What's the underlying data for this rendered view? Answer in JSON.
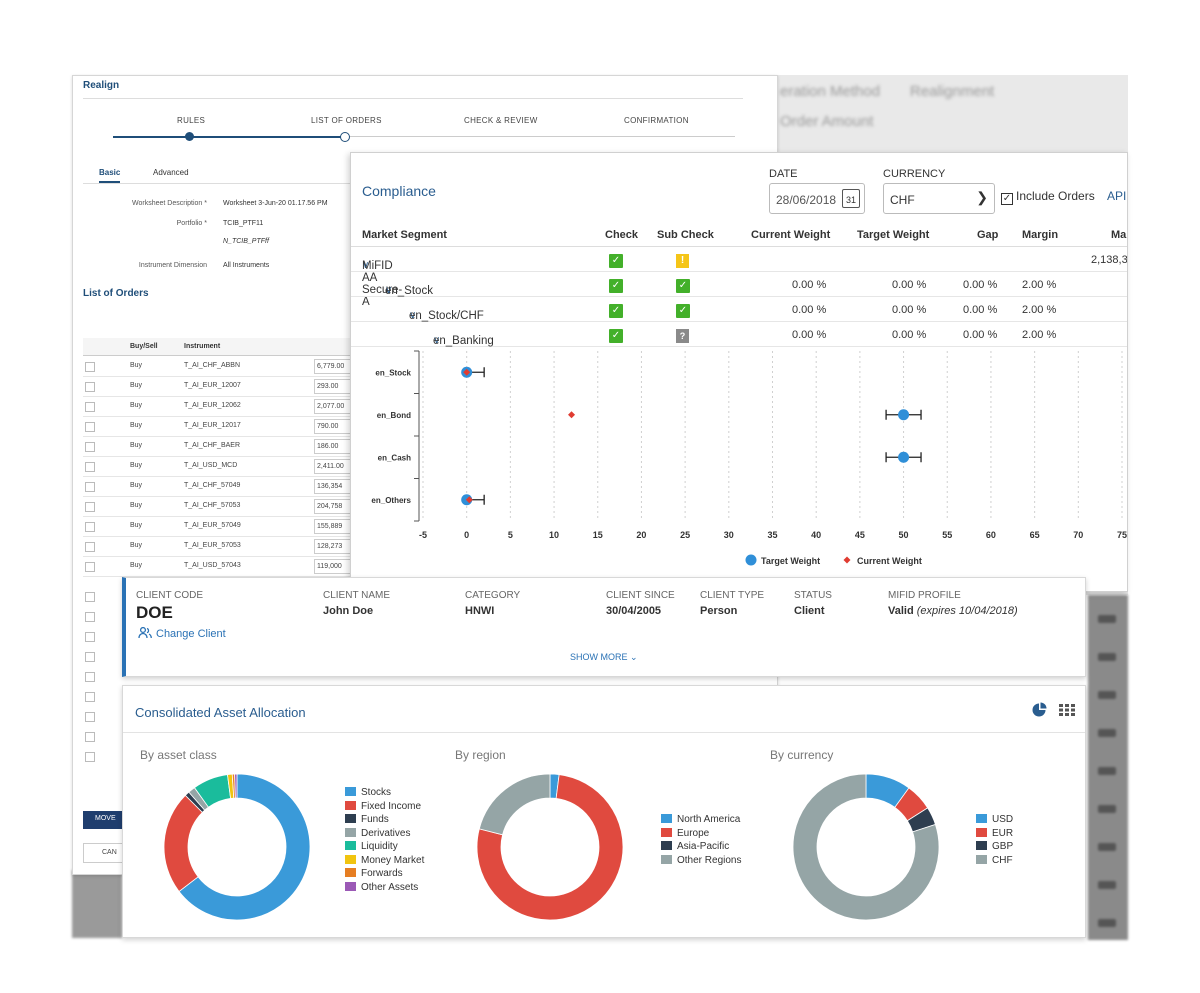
{
  "realign": {
    "title": "Realign",
    "steps": [
      "RULES",
      "LIST OF ORDERS",
      "CHECK & REVIEW",
      "CONFIRMATION"
    ],
    "tabs": [
      "Basic",
      "Advanced"
    ],
    "form": {
      "worksheet_label": "Worksheet Description *",
      "worksheet_value": "Worksheet 3-Jun-20 01.17.56 PM",
      "portfolio_label": "Portfolio *",
      "portfolio_value1": "TCIB_PTF11",
      "portfolio_value2": "N_TCIB_PTFff",
      "instrument_label": "Instrument Dimension",
      "instrument_value": "All Instruments"
    },
    "list_title": "List of Orders",
    "columns": [
      "Buy/Sell",
      "Instrument"
    ],
    "orders": [
      {
        "side": "Buy",
        "instrument": "T_AI_CHF_ABBN",
        "amount": "6,779.00"
      },
      {
        "side": "Buy",
        "instrument": "T_AI_EUR_12007",
        "amount": "293.00"
      },
      {
        "side": "Buy",
        "instrument": "T_AI_EUR_12062",
        "amount": "2,077.00"
      },
      {
        "side": "Buy",
        "instrument": "T_AI_EUR_12017",
        "amount": "790.00"
      },
      {
        "side": "Buy",
        "instrument": "T_AI_CHF_BAER",
        "amount": "186.00"
      },
      {
        "side": "Buy",
        "instrument": "T_AI_USD_MCD",
        "amount": "2,411.00"
      },
      {
        "side": "Buy",
        "instrument": "T_AI_CHF_57049",
        "amount": "136,354"
      },
      {
        "side": "Buy",
        "instrument": "T_AI_CHF_57053",
        "amount": "204,758"
      },
      {
        "side": "Buy",
        "instrument": "T_AI_EUR_57049",
        "amount": "155,889"
      },
      {
        "side": "Buy",
        "instrument": "T_AI_EUR_57053",
        "amount": "128,273"
      },
      {
        "side": "Buy",
        "instrument": "T_AI_USD_57043",
        "amount": "119,000"
      }
    ],
    "move_btn": "MOVE",
    "cancel_btn": "CAN"
  },
  "compliance": {
    "title": "Compliance",
    "date_label": "DATE",
    "date_value": "28/06/2018",
    "cal_day": "31",
    "currency_label": "CURRENCY",
    "currency_value": "CHF",
    "include_orders": "Include Orders",
    "api": "API",
    "columns": [
      "Market Segment",
      "Check",
      "Sub Check",
      "Current Weight",
      "Target Weight",
      "Gap",
      "Margin",
      "Ma"
    ],
    "rows": [
      {
        "segment": "MiFID AA Secure-A",
        "check": "ok",
        "sub": "warn",
        "current": "",
        "target": "",
        "gap": "",
        "margin": "",
        "extra": "2,138,3"
      },
      {
        "segment": "en_Stock",
        "check": "ok",
        "sub": "ok",
        "current": "0.00 %",
        "target": "0.00 %",
        "gap": "0.00 %",
        "margin": "2.00 %",
        "extra": ""
      },
      {
        "segment": "en_Stock/CHF",
        "check": "ok",
        "sub": "ok",
        "current": "0.00 %",
        "target": "0.00 %",
        "gap": "0.00 %",
        "margin": "2.00 %",
        "extra": ""
      },
      {
        "segment": "en_Banking",
        "check": "ok",
        "sub": "unknown",
        "current": "0.00 %",
        "target": "0.00 %",
        "gap": "0.00 %",
        "margin": "2.00 %",
        "extra": ""
      }
    ]
  },
  "chart_data": {
    "type": "scatter",
    "categories": [
      "en_Stock",
      "en_Bond",
      "en_Cash",
      "en_Others"
    ],
    "x_ticks": [
      -5,
      0,
      5,
      10,
      15,
      20,
      25,
      30,
      35,
      40,
      45,
      50,
      55,
      60,
      65,
      70,
      75
    ],
    "xlim": [
      -5,
      75
    ],
    "grid": true,
    "legend_position": "bottom",
    "series": [
      {
        "name": "Target Weight",
        "color": "#2f8fd8",
        "values": [
          0,
          50,
          50,
          0
        ],
        "error_low": [
          0,
          48,
          48,
          0
        ],
        "error_high": [
          2,
          52,
          52,
          2
        ]
      },
      {
        "name": "Current Weight",
        "color": "#e03c31",
        "values": [
          0,
          12,
          null,
          0.3
        ]
      }
    ]
  },
  "client": {
    "code_label": "CLIENT CODE",
    "code": "DOE",
    "change": "Change Client",
    "name_label": "CLIENT NAME",
    "name": "John Doe",
    "category_label": "CATEGORY",
    "category": "HNWI",
    "since_label": "CLIENT SINCE",
    "since": "30/04/2005",
    "type_label": "CLIENT TYPE",
    "type": "Person",
    "status_label": "STATUS",
    "status": "Client",
    "mifid_label": "MIFID PROFILE",
    "mifid": "Valid",
    "mifid_expires": "(expires 10/04/2018)",
    "show_more": "SHOW MORE"
  },
  "allocation": {
    "title": "Consolidated Asset Allocation",
    "asset_class": {
      "title": "By asset class",
      "items": [
        {
          "label": "Stocks",
          "value": 62,
          "color": "#3a9ad9"
        },
        {
          "label": "Fixed Income",
          "value": 22,
          "color": "#e04a3f"
        },
        {
          "label": "Funds",
          "value": 1,
          "color": "#2e3e50"
        },
        {
          "label": "Derivatives",
          "value": 1.5,
          "color": "#95a5a6"
        },
        {
          "label": "Liquidity",
          "value": 7.5,
          "color": "#1abc9c"
        },
        {
          "label": "Money Market",
          "value": 1,
          "color": "#f1c40f"
        },
        {
          "label": "Forwards",
          "value": 0.5,
          "color": "#e67e22"
        },
        {
          "label": "Other Assets",
          "value": 0.5,
          "color": "#9b59b6"
        }
      ]
    },
    "region": {
      "title": "By region",
      "items": [
        {
          "label": "North America",
          "value": 2,
          "color": "#3a9ad9"
        },
        {
          "label": "Europe",
          "value": 77,
          "color": "#e04a3f"
        },
        {
          "label": "Asia-Pacific",
          "value": 0,
          "color": "#2e3e50"
        },
        {
          "label": "Other Regions",
          "value": 21,
          "color": "#95a5a6"
        }
      ]
    },
    "currency": {
      "title": "By currency",
      "items": [
        {
          "label": "USD",
          "value": 10,
          "color": "#3a9ad9"
        },
        {
          "label": "EUR",
          "value": 6,
          "color": "#e04a3f"
        },
        {
          "label": "GBP",
          "value": 4,
          "color": "#2e3e50"
        },
        {
          "label": "CHF",
          "value": 80,
          "color": "#95a5a6"
        }
      ]
    }
  },
  "background": {
    "blur_1": "eration Method",
    "blur_2": "Realignment",
    "blur_3": "Order Amount"
  }
}
